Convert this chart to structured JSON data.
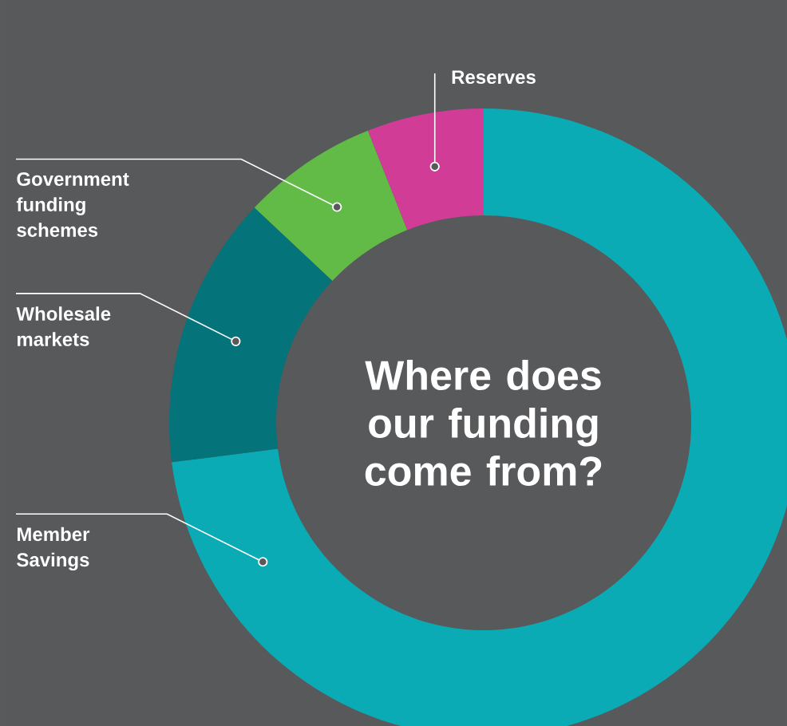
{
  "chart_data": {
    "type": "donut",
    "title": "Where does our funding come from?",
    "categories": [
      "Member Savings",
      "Wholesale markets",
      "Government funding schemes",
      "Reserves"
    ],
    "values": [
      73,
      14,
      7,
      6
    ],
    "colors": [
      "#0aabb5",
      "#05737a",
      "#62bb46",
      "#d03c96"
    ]
  }
}
